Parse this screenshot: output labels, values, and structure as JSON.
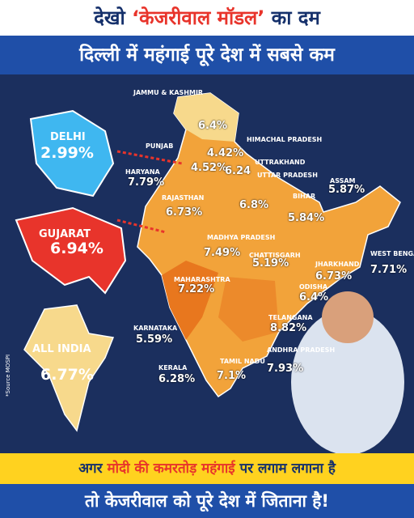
{
  "header": {
    "title": [
      "देखो",
      "‘केजरीवाल मॉडल’",
      "का दम"
    ],
    "subtitle": "दिल्ली में महंगाई पूरे देश में सबसे कम"
  },
  "regions": [
    {
      "name": "JAMMU & KASHMIR",
      "value": "6.4%"
    },
    {
      "name": "PUNJAB",
      "value": "4.42%"
    },
    {
      "name": "HIMACHAL PRADESH",
      "value": "4.52%"
    },
    {
      "name": "UTTRAKHAND",
      "value": "6.24"
    },
    {
      "name": "HARYANA",
      "value": "7.79%"
    },
    {
      "name": "UTTAR PRADESH",
      "value": "6.8%"
    },
    {
      "name": "RAJASTHAN",
      "value": "6.73%"
    },
    {
      "name": "BIHAR",
      "value": "5.84%"
    },
    {
      "name": "ASSAM",
      "value": "5.87%"
    },
    {
      "name": "MADHYA PRADESH",
      "value": "7.49%"
    },
    {
      "name": "CHATTISGARH",
      "value": "5.19%"
    },
    {
      "name": "WEST BENGAL",
      "value": "7.71%"
    },
    {
      "name": "JHARKHAND",
      "value": "6.73%"
    },
    {
      "name": "MAHARASHTRA",
      "value": "7.22%"
    },
    {
      "name": "ODISHA",
      "value": "6.4%"
    },
    {
      "name": "TELANGANA",
      "value": "8.82%"
    },
    {
      "name": "KARNATAKA",
      "value": "5.59%"
    },
    {
      "name": "ANDHRA PRADESH",
      "value": "7.93%"
    },
    {
      "name": "TAMIL NADU",
      "value": "7.1%"
    },
    {
      "name": "KERALA",
      "value": "6.28%"
    }
  ],
  "callouts": [
    {
      "name": "DELHI",
      "value": "2.99%"
    },
    {
      "name": "GUJARAT",
      "value": "6.94%"
    },
    {
      "name": "ALL INDIA",
      "value": "6.77%"
    }
  ],
  "source": "*Source MOSPI",
  "footer": {
    "line1": [
      "अगर",
      "मोदी की कमरतोड़ महंगाई",
      "पर लगाम लगाना है"
    ],
    "line2": "तो केजरीवाल को पूरे देश में जिताना है!"
  }
}
